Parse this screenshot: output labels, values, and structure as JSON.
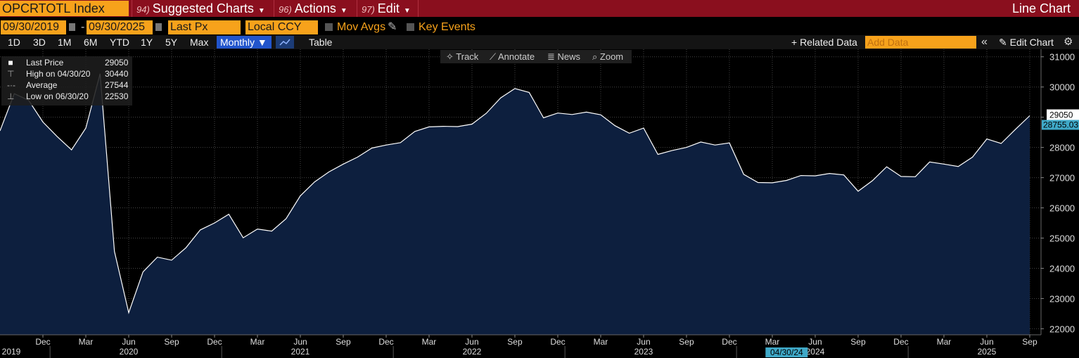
{
  "toolbar": {
    "ticker": "OPCRTOTL Index",
    "menus": [
      {
        "num": "94)",
        "label": "Suggested Charts"
      },
      {
        "num": "96)",
        "label": "Actions"
      },
      {
        "num": "97)",
        "label": "Edit"
      }
    ],
    "chart_type": "Line Chart"
  },
  "settings": {
    "start_date": "09/30/2019",
    "end_date": "09/30/2025",
    "separator": "-",
    "field": "Last Px",
    "currency": "Local CCY",
    "mov_avgs": "Mov Avgs",
    "key_events": "Key Events"
  },
  "periods": [
    "1D",
    "3D",
    "1M",
    "6M",
    "YTD",
    "1Y",
    "5Y",
    "Max"
  ],
  "frequency": "Monthly ▼",
  "table_label": "Table",
  "related_data": "+ Related Data",
  "add_data_placeholder": "Add Data",
  "edit_chart": "Edit Chart",
  "chart_tools": [
    "Track",
    "Annotate",
    "News",
    "Zoom"
  ],
  "legend": [
    {
      "label": "Last Price",
      "value": "29050"
    },
    {
      "label": "High on 04/30/20",
      "value": "30440"
    },
    {
      "label": "Average",
      "value": "27544"
    },
    {
      "label": "Low on 06/30/20",
      "value": "22530"
    }
  ],
  "chart_data": {
    "type": "area",
    "x": [
      "2019-09",
      "2019-10",
      "2019-11",
      "2019-12",
      "2020-01",
      "2020-02",
      "2020-03",
      "2020-04",
      "2020-05",
      "2020-06",
      "2020-07",
      "2020-08",
      "2020-09",
      "2020-10",
      "2020-11",
      "2020-12",
      "2021-01",
      "2021-02",
      "2021-03",
      "2021-04",
      "2021-05",
      "2021-06",
      "2021-07",
      "2021-08",
      "2021-09",
      "2021-10",
      "2021-11",
      "2021-12",
      "2022-01",
      "2022-02",
      "2022-03",
      "2022-04",
      "2022-05",
      "2022-06",
      "2022-07",
      "2022-08",
      "2022-09",
      "2022-10",
      "2022-11",
      "2022-12",
      "2023-01",
      "2023-02",
      "2023-03",
      "2023-04",
      "2023-05",
      "2023-06",
      "2023-07",
      "2023-08",
      "2023-09",
      "2023-10",
      "2023-11",
      "2023-12",
      "2024-01",
      "2024-02",
      "2024-03",
      "2024-04",
      "2024-05",
      "2024-06",
      "2024-07",
      "2024-08",
      "2024-09",
      "2024-10",
      "2024-11",
      "2024-12",
      "2025-01",
      "2025-02",
      "2025-03",
      "2025-04",
      "2025-05",
      "2025-06",
      "2025-07",
      "2025-08",
      "2025-09"
    ],
    "values": [
      28550,
      29780,
      29560,
      28840,
      28360,
      27920,
      28640,
      30440,
      24560,
      22530,
      23880,
      24370,
      24270,
      24680,
      25270,
      25500,
      25790,
      25010,
      25300,
      25230,
      25640,
      26400,
      26860,
      27190,
      27450,
      27680,
      27980,
      28080,
      28160,
      28530,
      28680,
      28700,
      28690,
      28770,
      29130,
      29640,
      29950,
      29820,
      28980,
      29140,
      29090,
      29170,
      29080,
      28720,
      28470,
      28640,
      27770,
      27900,
      28000,
      28180,
      28080,
      28150,
      27110,
      26840,
      26830,
      26910,
      27070,
      27060,
      27140,
      27090,
      26550,
      26900,
      27360,
      27040,
      27030,
      27520,
      27450,
      27370,
      27680,
      28280,
      28130,
      28600,
      29050
    ],
    "last_price_label": "29050",
    "last_value_label": "28755.03",
    "ylim": [
      21800,
      31250
    ],
    "yticks": [
      22000,
      23000,
      24000,
      25000,
      26000,
      27000,
      28000,
      29000,
      30000,
      31000
    ],
    "year_labels": [
      {
        "label": "2019",
        "month": "2019-09"
      },
      {
        "label": "2020",
        "month": "2020-06"
      },
      {
        "label": "2021",
        "month": "2021-06"
      },
      {
        "label": "2022",
        "month": "2022-06"
      },
      {
        "label": "2023",
        "month": "2023-06"
      },
      {
        "label": "2024",
        "month": "2024-06"
      },
      {
        "label": "2025",
        "month": "2025-06"
      }
    ],
    "highlight_date": "04/30/24",
    "colors": {
      "line": "#ffffff",
      "fill": "#0d1f3e",
      "grid": "#444444",
      "last_price_bg": "#ffffff",
      "last_value_bg": "#3fa9c8"
    }
  }
}
